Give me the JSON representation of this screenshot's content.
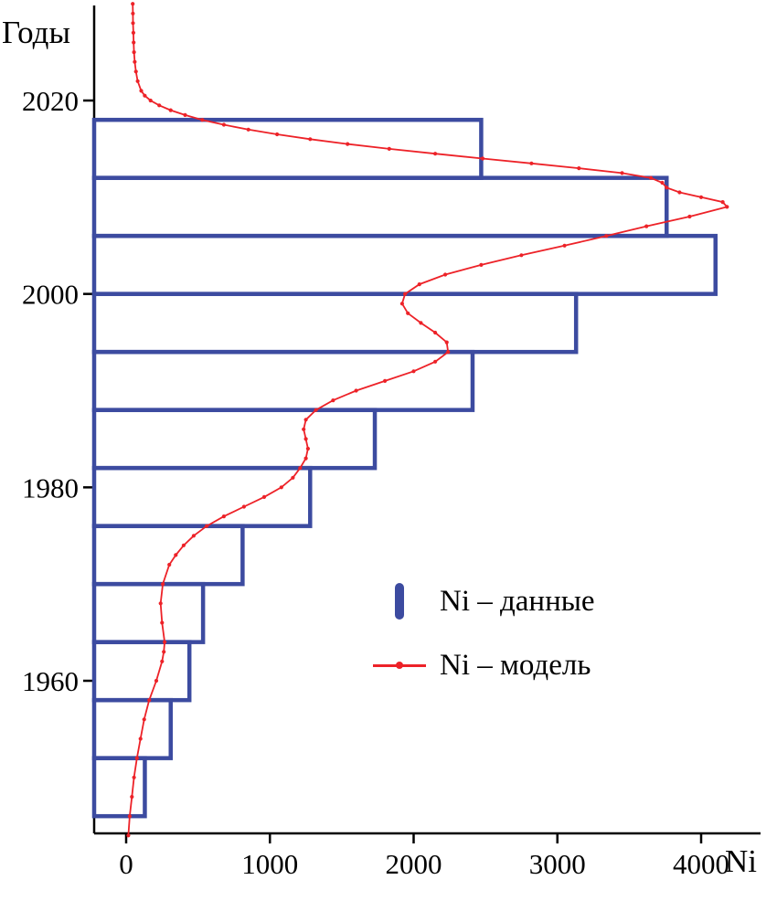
{
  "figure": {
    "y_axis_title": "Годы",
    "x_axis_title": "Ni"
  },
  "legend": {
    "items": [
      {
        "label": "Ni – данные",
        "marker": "bar-marker-icon"
      },
      {
        "label": "Ni – модель",
        "marker": "line-marker-icon"
      }
    ]
  },
  "colors": {
    "bars": "#3c4ba0",
    "line": "#ed2228",
    "axis": "#000000"
  },
  "chart_data": {
    "type": "bar",
    "orientation": "horizontal",
    "title": "",
    "xlabel": "Ni",
    "ylabel": "Годы",
    "xlim": [
      -220,
      4420
    ],
    "ylim": [
      1944,
      2030
    ],
    "x_ticks": [
      0,
      1000,
      2000,
      3000,
      4000
    ],
    "y_ticks": [
      1960,
      1980,
      2000,
      2020
    ],
    "grid": false,
    "legend_position": "center-right",
    "series": [
      {
        "name": "Ni – данные",
        "type": "bar",
        "color": "#3c4ba0",
        "bin_edges": [
          1946,
          1952,
          1958,
          1964,
          1970,
          1976,
          1982,
          1988,
          1994,
          2000,
          2006,
          2012,
          2018
        ],
        "values": [
          130,
          310,
          440,
          535,
          810,
          1280,
          1730,
          2410,
          3130,
          4100,
          3760,
          2470
        ]
      },
      {
        "name": "Ni – модель",
        "type": "line",
        "color": "#ed2228",
        "points": [
          [
            1944,
            15
          ],
          [
            1946,
            25
          ],
          [
            1948,
            40
          ],
          [
            1950,
            55
          ],
          [
            1952,
            75
          ],
          [
            1954,
            100
          ],
          [
            1956,
            125
          ],
          [
            1958,
            160
          ],
          [
            1960,
            210
          ],
          [
            1962,
            250
          ],
          [
            1963,
            262
          ],
          [
            1964,
            268
          ],
          [
            1966,
            250
          ],
          [
            1968,
            240
          ],
          [
            1970,
            255
          ],
          [
            1972,
            300
          ],
          [
            1973,
            345
          ],
          [
            1974,
            400
          ],
          [
            1975,
            470
          ],
          [
            1976,
            560
          ],
          [
            1977,
            680
          ],
          [
            1978,
            820
          ],
          [
            1979,
            960
          ],
          [
            1980,
            1080
          ],
          [
            1981,
            1160
          ],
          [
            1982,
            1210
          ],
          [
            1983,
            1250
          ],
          [
            1984,
            1265
          ],
          [
            1985,
            1250
          ],
          [
            1986,
            1235
          ],
          [
            1987,
            1250
          ],
          [
            1988,
            1320
          ],
          [
            1989,
            1440
          ],
          [
            1990,
            1600
          ],
          [
            1991,
            1800
          ],
          [
            1992,
            2000
          ],
          [
            1993,
            2150
          ],
          [
            1994,
            2240
          ],
          [
            1995,
            2230
          ],
          [
            1996,
            2150
          ],
          [
            1997,
            2050
          ],
          [
            1998,
            1960
          ],
          [
            1999,
            1920
          ],
          [
            2000,
            1940
          ],
          [
            2001,
            2040
          ],
          [
            2002,
            2220
          ],
          [
            2003,
            2470
          ],
          [
            2004,
            2750
          ],
          [
            2005,
            3050
          ],
          [
            2006,
            3340
          ],
          [
            2007,
            3620
          ],
          [
            2008,
            3920
          ],
          [
            2009,
            4180
          ],
          [
            2009.5,
            4150
          ],
          [
            2010,
            4000
          ],
          [
            2010.5,
            3850
          ],
          [
            2011,
            3760
          ],
          [
            2011.5,
            3730
          ],
          [
            2012,
            3650
          ],
          [
            2012.5,
            3450
          ],
          [
            2013,
            3150
          ],
          [
            2013.5,
            2820
          ],
          [
            2014,
            2480
          ],
          [
            2014.5,
            2150
          ],
          [
            2015,
            1830
          ],
          [
            2015.5,
            1540
          ],
          [
            2016,
            1280
          ],
          [
            2016.5,
            1050
          ],
          [
            2017,
            850
          ],
          [
            2017.5,
            680
          ],
          [
            2018,
            530
          ],
          [
            2018.5,
            410
          ],
          [
            2019,
            310
          ],
          [
            2019.5,
            230
          ],
          [
            2020,
            170
          ],
          [
            2020.5,
            130
          ],
          [
            2021,
            105
          ],
          [
            2022,
            80
          ],
          [
            2023,
            68
          ],
          [
            2024,
            60
          ],
          [
            2025,
            55
          ],
          [
            2026,
            52
          ],
          [
            2027,
            50
          ],
          [
            2028,
            48
          ],
          [
            2029,
            47
          ],
          [
            2030,
            46
          ]
        ]
      }
    ]
  }
}
